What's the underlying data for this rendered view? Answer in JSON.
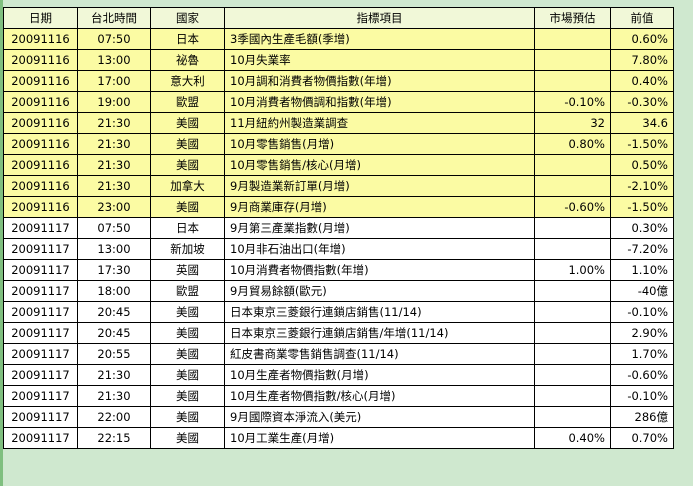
{
  "headers": [
    "日期",
    "台北時間",
    "國家",
    "指標項目",
    "市場預估",
    "前值"
  ],
  "rows": [
    {
      "date": "20091116",
      "time": "07:50",
      "country": "日本",
      "indicator": "3季國內生產毛額(季增)",
      "forecast": "",
      "previous": "0.60%",
      "hl": true
    },
    {
      "date": "20091116",
      "time": "13:00",
      "country": "祕魯",
      "indicator": "10月失業率",
      "forecast": "",
      "previous": "7.80%",
      "hl": true
    },
    {
      "date": "20091116",
      "time": "17:00",
      "country": "意大利",
      "indicator": "10月調和消費者物價指數(年增)",
      "forecast": "",
      "previous": "0.40%",
      "hl": true
    },
    {
      "date": "20091116",
      "time": "19:00",
      "country": "歐盟",
      "indicator": "10月消費者物價調和指數(年增)",
      "forecast": "-0.10%",
      "previous": "-0.30%",
      "hl": true
    },
    {
      "date": "20091116",
      "time": "21:30",
      "country": "美國",
      "indicator": "11月紐約州製造業調查",
      "forecast": "32",
      "previous": "34.6",
      "hl": true
    },
    {
      "date": "20091116",
      "time": "21:30",
      "country": "美國",
      "indicator": "10月零售銷售(月增)",
      "forecast": "0.80%",
      "previous": "-1.50%",
      "hl": true
    },
    {
      "date": "20091116",
      "time": "21:30",
      "country": "美國",
      "indicator": "10月零售銷售/核心(月增)",
      "forecast": "",
      "previous": "0.50%",
      "hl": true
    },
    {
      "date": "20091116",
      "time": "21:30",
      "country": "加拿大",
      "indicator": "9月製造業新訂單(月增)",
      "forecast": "",
      "previous": "-2.10%",
      "hl": true
    },
    {
      "date": "20091116",
      "time": "23:00",
      "country": "美國",
      "indicator": "9月商業庫存(月增)",
      "forecast": "-0.60%",
      "previous": "-1.50%",
      "hl": true
    },
    {
      "date": "20091117",
      "time": "07:50",
      "country": "日本",
      "indicator": "9月第三產業指數(月增)",
      "forecast": "",
      "previous": "0.30%",
      "hl": false
    },
    {
      "date": "20091117",
      "time": "13:00",
      "country": "新加坡",
      "indicator": "10月非石油出口(年增)",
      "forecast": "",
      "previous": "-7.20%",
      "hl": false
    },
    {
      "date": "20091117",
      "time": "17:30",
      "country": "英國",
      "indicator": "10月消費者物價指數(年增)",
      "forecast": "1.00%",
      "previous": "1.10%",
      "hl": false
    },
    {
      "date": "20091117",
      "time": "18:00",
      "country": "歐盟",
      "indicator": "9月貿易餘額(歐元)",
      "forecast": "",
      "previous": "-40億",
      "hl": false
    },
    {
      "date": "20091117",
      "time": "20:45",
      "country": "美國",
      "indicator": "日本東京三菱銀行連鎖店銷售(11/14)",
      "forecast": "",
      "previous": "-0.10%",
      "hl": false
    },
    {
      "date": "20091117",
      "time": "20:45",
      "country": "美國",
      "indicator": "日本東京三菱銀行連鎖店銷售/年增(11/14)",
      "forecast": "",
      "previous": "2.90%",
      "hl": false
    },
    {
      "date": "20091117",
      "time": "20:55",
      "country": "美國",
      "indicator": "紅皮書商業零售銷售調查(11/14)",
      "forecast": "",
      "previous": "1.70%",
      "hl": false
    },
    {
      "date": "20091117",
      "time": "21:30",
      "country": "美國",
      "indicator": "10月生產者物價指數(月增)",
      "forecast": "",
      "previous": "-0.60%",
      "hl": false
    },
    {
      "date": "20091117",
      "time": "21:30",
      "country": "美國",
      "indicator": "10月生產者物價指數/核心(月增)",
      "forecast": "",
      "previous": "-0.10%",
      "hl": false
    },
    {
      "date": "20091117",
      "time": "22:00",
      "country": "美國",
      "indicator": "9月國際資本淨流入(美元)",
      "forecast": "",
      "previous": "286億",
      "hl": false
    },
    {
      "date": "20091117",
      "time": "22:15",
      "country": "美國",
      "indicator": "10月工業生產(月增)",
      "forecast": "0.40%",
      "previous": "0.70%",
      "hl": false
    }
  ],
  "colors": {
    "highlight_row": "#fbfba3",
    "normal_row": "#ffffff",
    "header": "#f1f8d8",
    "background": "#cfe8cf"
  }
}
